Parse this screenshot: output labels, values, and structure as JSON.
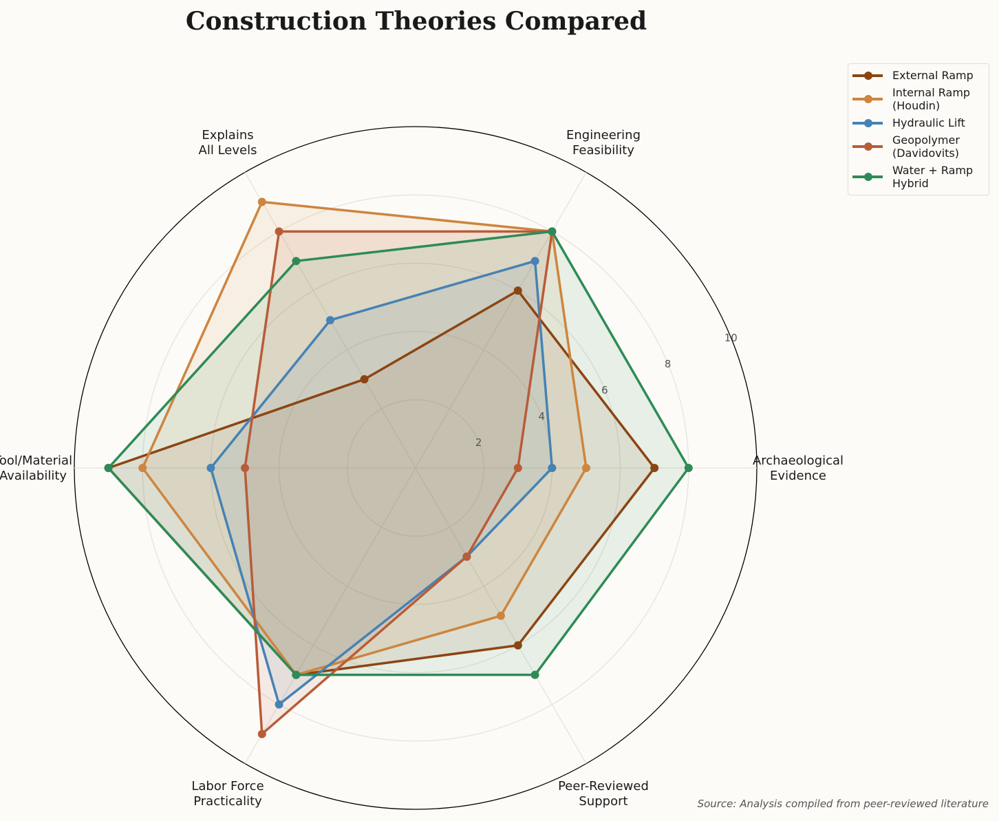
{
  "chart_data": {
    "type": "radar",
    "title": "Construction Theories Compared",
    "categories": [
      "Archaeological\nEvidence",
      "Engineering\nFeasibility",
      "Explains\nAll Levels",
      "Tool/Material\nAvailability",
      "Labor Force\nPracticality",
      "Peer-Reviewed\nSupport"
    ],
    "rlim": [
      0,
      10
    ],
    "rticks": [
      2,
      4,
      6,
      8,
      10
    ],
    "grid": true,
    "legend_placement": "upper-right-outside",
    "series": [
      {
        "name": "External Ramp",
        "color": "#8b4513",
        "values": [
          7,
          6,
          3,
          9,
          7,
          6
        ]
      },
      {
        "name": "Internal Ramp\n(Houdin)",
        "color": "#cd853f",
        "values": [
          5,
          8,
          9,
          8,
          7,
          5
        ]
      },
      {
        "name": "Hydraulic Lift",
        "color": "#4682b4",
        "values": [
          4,
          7,
          5,
          6,
          8,
          3
        ]
      },
      {
        "name": "Geopolymer\n(Davidovits)",
        "color": "#b85c38",
        "values": [
          3,
          8,
          8,
          5,
          9,
          3
        ]
      },
      {
        "name": "Water + Ramp\nHybrid",
        "color": "#2e8b57",
        "values": [
          8,
          8,
          7,
          9,
          7,
          7
        ]
      }
    ],
    "source": "Source: Analysis compiled from peer-reviewed literature"
  }
}
